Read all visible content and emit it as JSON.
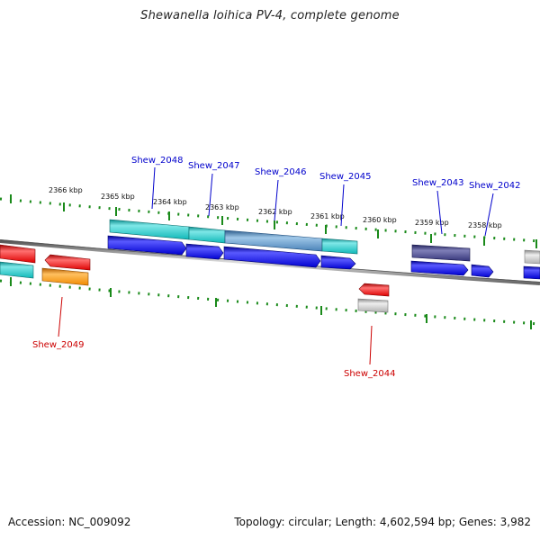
{
  "title": "Shewanella loihica PV-4, complete genome",
  "footer": {
    "accession": "Accession: NC_009092",
    "summary": "Topology: circular; Length: 4,602,594 bp; Genes: 3,982"
  },
  "colors": {
    "forward_cds": "#0000ee",
    "forward_gene": "#20c0c0",
    "reverse_cds": "#ee0000",
    "reverse_gene_gray": "#b8b8b8",
    "forward_label": "#0000cc",
    "reverse_label": "#cc0000",
    "tick": "#1a8a1a",
    "backbone": "#888888"
  },
  "tick_labels": [
    "2366 kbp",
    "2365 kbp",
    "2364 kbp",
    "2363 kbp",
    "2362 kbp",
    "2361 kbp",
    "2360 kbp",
    "2359 kbp",
    "2358 kbp"
  ],
  "genes": [
    {
      "id": "Shew_2048",
      "strand": "forward"
    },
    {
      "id": "Shew_2047",
      "strand": "forward"
    },
    {
      "id": "Shew_2046",
      "strand": "forward"
    },
    {
      "id": "Shew_2045",
      "strand": "forward"
    },
    {
      "id": "Shew_2043",
      "strand": "forward"
    },
    {
      "id": "Shew_2042",
      "strand": "forward"
    },
    {
      "id": "Shew_2049",
      "strand": "reverse"
    },
    {
      "id": "Shew_2044",
      "strand": "reverse"
    }
  ]
}
